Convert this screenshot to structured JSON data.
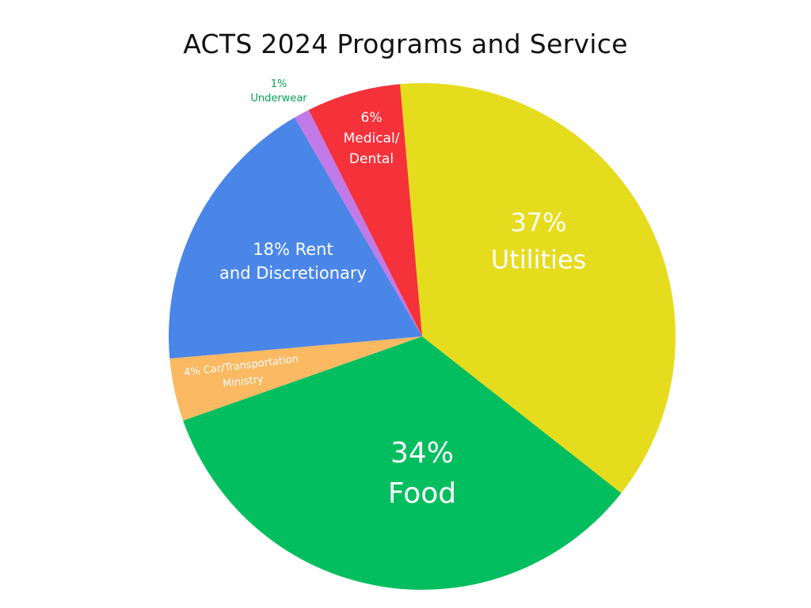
{
  "chart_data": {
    "type": "pie",
    "title": "ACTS 2024 Programs and Service",
    "slices": [
      {
        "name": "Utilities",
        "value": 37,
        "color": "#e6dc1e",
        "label_lines": [
          "37%",
          "Utilities"
        ],
        "label_color": "#ffffff"
      },
      {
        "name": "Food",
        "value": 34,
        "color": "#02be5f",
        "label_lines": [
          "34%",
          "Food"
        ],
        "label_color": "#ffffff"
      },
      {
        "name": "Car/Transportation Ministry",
        "value": 4,
        "color": "#fbb962",
        "label_lines": [
          "4% Car/Transportation",
          "Ministry"
        ],
        "label_color": "#ffffff"
      },
      {
        "name": "Rent and Discretionary",
        "value": 18,
        "color": "#4a86e8",
        "label_lines": [
          "18% Rent",
          "and Discretionary"
        ],
        "label_color": "#ffffff"
      },
      {
        "name": "Underwear",
        "value": 1,
        "color": "#c27ae8",
        "label_lines": [
          "1%",
          "Underwear"
        ],
        "label_color": "#02a556"
      },
      {
        "name": "Medical/Dental",
        "value": 6,
        "color": "#f5323a",
        "label_lines": [
          "6%",
          "Medical/",
          "Dental"
        ],
        "label_color": "#ffffff"
      }
    ]
  }
}
